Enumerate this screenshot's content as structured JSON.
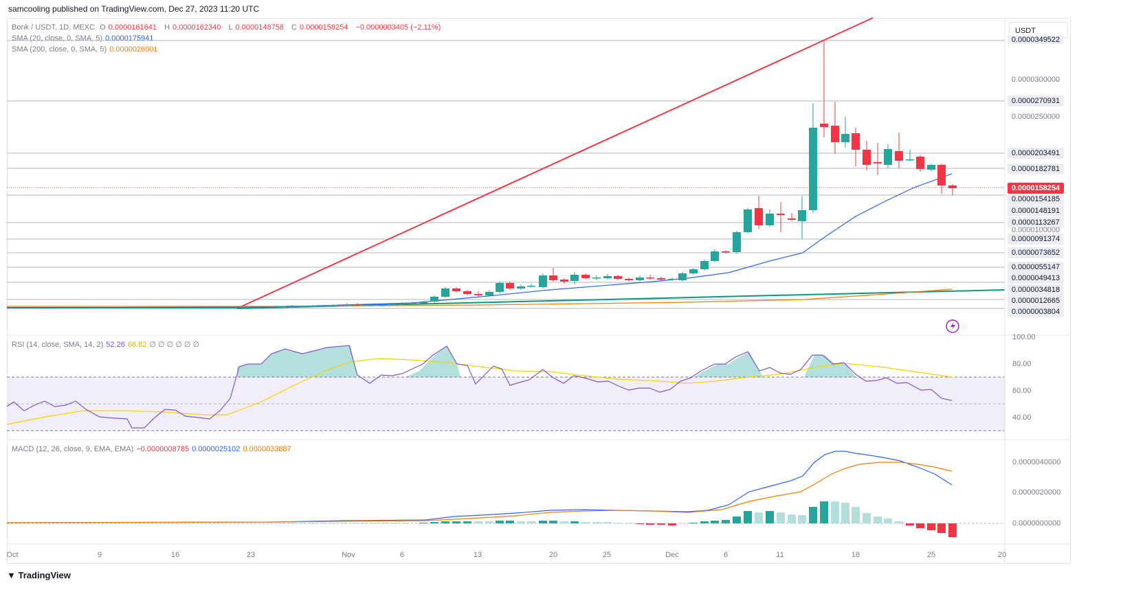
{
  "header": {
    "publisher_text": "samcooling published on TradingView.com, Dec 27, 2023 11:20 UTC"
  },
  "currency_selector": {
    "value": "USDT"
  },
  "price_legend": {
    "symbol": "Bonk / USDT, 1D, MEXC",
    "o_label": "O",
    "o_value": "0.0000161641",
    "h_label": "H",
    "h_value": "0.0000162340",
    "l_label": "L",
    "l_value": "0.0000148758",
    "c_label": "C",
    "c_value": "0.0000158254",
    "change": "−0.0000003405 (−2.11%)",
    "sma20_label": "SMA (20, close, 0, SMA, 5)",
    "sma20_value": "0.0000175941",
    "sma200_label": "SMA (200, close, 0, SMA, 5)",
    "sma200_value": "0.0000026001"
  },
  "price_axis": {
    "top_partial": "0.0000349522",
    "plain_ticks": [
      "0.0000300000",
      "0.0000250000",
      "0.0000100000"
    ],
    "labels": [
      "0.0000270931",
      "0.0000203491",
      "0.0000182781",
      "0.0000154185",
      "0.0000148191",
      "0.0000113267",
      "0.0000091374",
      "0.0000073652",
      "0.0000055147",
      "0.0000049413",
      "0.0000034818",
      "0.0000012665",
      "0.0000003804"
    ],
    "last_price": "0.0000158254"
  },
  "rsi": {
    "legend_label": "RSI (14, close, SMA, 14, 2)",
    "rsi_value": "52.26",
    "ma_value": "68.82",
    "empty_values": "∅ ∅ ∅ ∅ ∅ ∅",
    "axis": [
      "100.00",
      "80.00",
      "60.00",
      "40.00"
    ]
  },
  "macd": {
    "legend_label": "MACD (12, 26, close, 9, EMA, EMA)",
    "hist_value": "−0.0000008785",
    "macd_value": "0.0000025102",
    "signal_value": "0.0000033887",
    "axis": [
      "0.0000040000",
      "0.0000020000",
      "0.0000000000"
    ]
  },
  "time_axis": [
    "Oct",
    "9",
    "16",
    "23",
    "Nov",
    "6",
    "13",
    "20",
    "25",
    "Dec",
    "6",
    "11",
    "18",
    "25",
    "20"
  ],
  "footer": {
    "logo_text": "TradingView"
  },
  "colors": {
    "up": "#26a69a",
    "down": "#f23645",
    "sma20": "#2962ff",
    "sma200": "#f57c00",
    "rsi": "#7e57c2",
    "rsi_ma": "#f5d300",
    "trendline_red": "#f23645",
    "trendline_green": "#089981"
  },
  "icons": [
    "lightning-icon",
    "tradingview-logo-icon"
  ]
}
